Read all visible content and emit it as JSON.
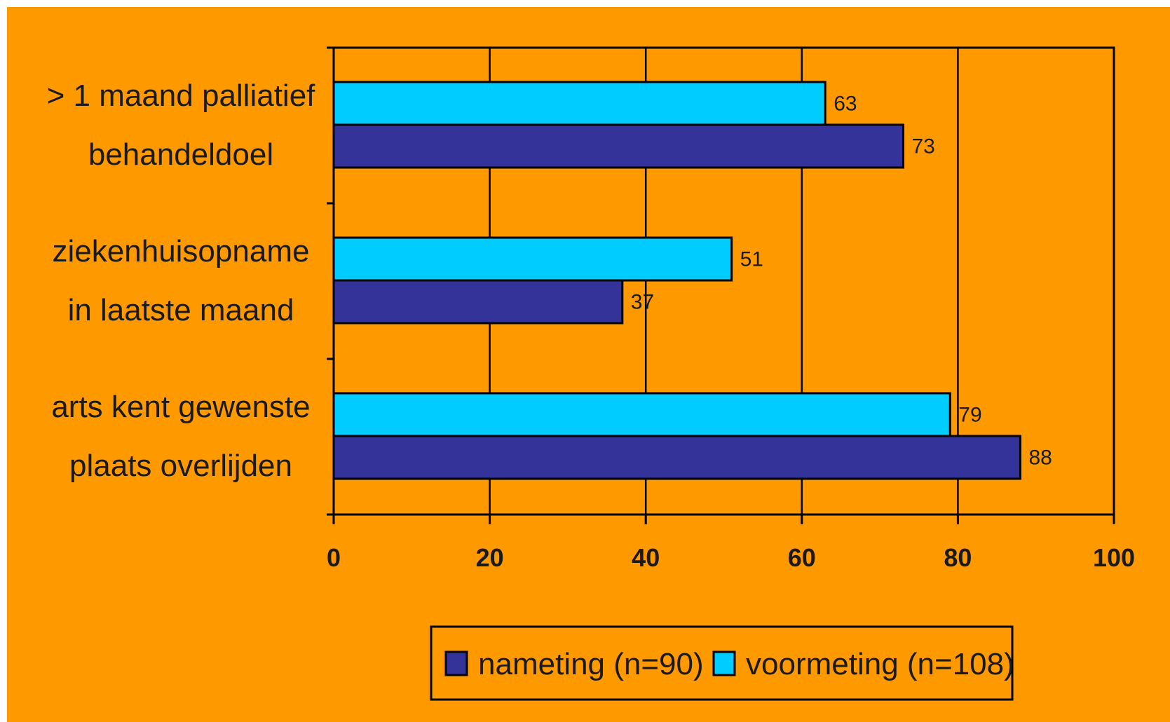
{
  "chart_data": {
    "type": "bar",
    "orientation": "horizontal",
    "title": "",
    "xlabel": "",
    "ylabel": "",
    "categories": [
      [
        "> 1 maand palliatief",
        "behandeldoel"
      ],
      [
        "ziekenhuisopname",
        "in laatste maand"
      ],
      [
        "arts kent gewenste",
        "plaats overlijden"
      ]
    ],
    "series": [
      {
        "name": "voormeting (n=108)",
        "color": "#00CCFF",
        "values": [
          63,
          51,
          79
        ]
      },
      {
        "name": "nameting (n=90)",
        "color": "#333399",
        "values": [
          73,
          37,
          88
        ]
      }
    ],
    "xlim": [
      0,
      100
    ],
    "xticks": [
      "0",
      "20",
      "40",
      "60",
      "80",
      "100"
    ],
    "grid": true,
    "legend_position": "bottom",
    "legend_order": [
      "nameting (n=90)",
      "voormeting (n=108)"
    ],
    "colors": {
      "background": "#FF9900",
      "outer": "#FFFFFF",
      "axis": "#000000"
    }
  }
}
